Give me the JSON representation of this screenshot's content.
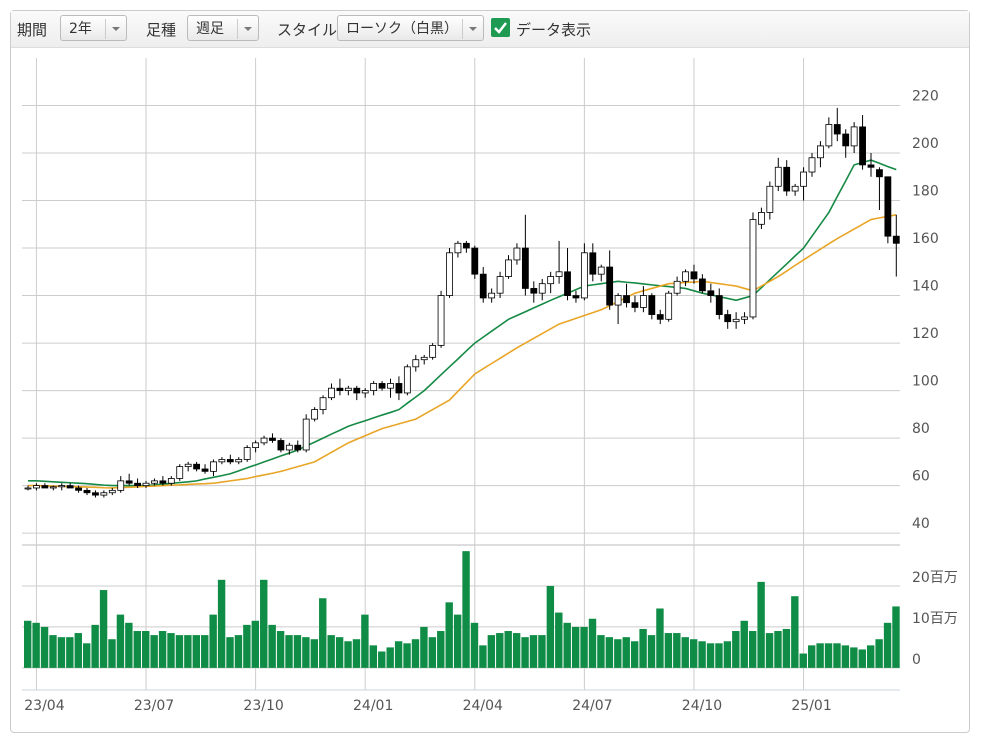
{
  "controls": {
    "period_label": "期間",
    "period_value": "2年",
    "interval_label": "足種",
    "interval_value": "週足",
    "style_label": "スタイル",
    "style_value": "ローソク（白黒）",
    "data_label": "データ表示"
  },
  "chart_data": {
    "type": "candlestick",
    "categories": [
      null,
      "23/04",
      null,
      null,
      null,
      null,
      null,
      null,
      null,
      null,
      null,
      null,
      null,
      null,
      "23/07",
      null,
      null,
      null,
      null,
      null,
      null,
      null,
      null,
      null,
      null,
      null,
      null,
      "23/10",
      null,
      null,
      null,
      null,
      null,
      null,
      null,
      null,
      null,
      null,
      null,
      null,
      "24/01",
      null,
      null,
      null,
      null,
      null,
      null,
      null,
      null,
      null,
      null,
      null,
      null,
      "24/04",
      null,
      null,
      null,
      null,
      null,
      null,
      null,
      null,
      null,
      null,
      null,
      null,
      "24/07",
      null,
      null,
      null,
      null,
      null,
      null,
      null,
      null,
      null,
      null,
      null,
      null,
      "24/10",
      null,
      null,
      null,
      null,
      null,
      null,
      null,
      null,
      null,
      null,
      null,
      null,
      "25/01",
      null,
      null,
      null,
      null,
      null,
      null,
      null,
      null,
      null,
      null,
      null
    ],
    "open": [
      59,
      59,
      60,
      59,
      59.5,
      60,
      59,
      58,
      57,
      56,
      57,
      58,
      62,
      61,
      60,
      61,
      62,
      61,
      63,
      68,
      69,
      67,
      66,
      70,
      71,
      70,
      71,
      76,
      78,
      80,
      79,
      75,
      77,
      75,
      88,
      92,
      97,
      101,
      100,
      101,
      99,
      100,
      103,
      101,
      103,
      99,
      110,
      113,
      114,
      119,
      140,
      158,
      162,
      160,
      149,
      139,
      141,
      148,
      155,
      160,
      143,
      141,
      145,
      148,
      150,
      140,
      139,
      158,
      149,
      152,
      136,
      140,
      137,
      135,
      140,
      132,
      130,
      141,
      146,
      150,
      147,
      142,
      140,
      132,
      129,
      130,
      131,
      170,
      175,
      186,
      194,
      184,
      186,
      192,
      198,
      203,
      212,
      208,
      203,
      211,
      195,
      193,
      190,
      165
    ],
    "high": [
      60,
      61,
      61,
      60,
      61,
      61,
      60,
      59,
      58,
      58,
      59,
      64,
      65,
      63,
      62,
      63,
      64,
      64,
      69,
      70,
      70,
      69,
      71,
      72,
      73,
      72,
      77,
      79,
      81,
      82,
      80,
      78,
      79,
      90,
      93,
      98,
      103,
      105,
      102,
      102,
      101,
      104,
      104,
      105,
      106,
      111,
      115,
      115,
      120,
      142,
      160,
      163,
      163,
      161,
      152,
      143,
      150,
      157,
      162,
      174,
      146,
      147,
      150,
      163,
      160,
      142,
      162,
      162,
      153,
      159,
      141,
      145,
      140,
      144,
      141,
      134,
      142,
      148,
      151,
      153,
      149,
      145,
      143,
      134,
      133,
      133,
      175,
      177,
      188,
      198,
      197,
      187,
      194,
      200,
      205,
      215,
      219,
      210,
      213,
      216,
      200,
      194,
      190,
      174
    ],
    "low": [
      58,
      58,
      59,
      58,
      58,
      59,
      57,
      56,
      55,
      55,
      56,
      57,
      60,
      59,
      59,
      60,
      60,
      60,
      62,
      66,
      66,
      65,
      64,
      69,
      69,
      69,
      70,
      74,
      77,
      78,
      74,
      73,
      74,
      74,
      87,
      90,
      96,
      98,
      98,
      96,
      97,
      98,
      100,
      97,
      96,
      98,
      108,
      111,
      113,
      118,
      139,
      156,
      158,
      147,
      137,
      137,
      139,
      147,
      153,
      140,
      137,
      138,
      141,
      145,
      138,
      137,
      138,
      146,
      146,
      134,
      128,
      135,
      133,
      133,
      130,
      128,
      129,
      140,
      144,
      145,
      141,
      137,
      130,
      126,
      126,
      128,
      130,
      168,
      172,
      184,
      182,
      182,
      180,
      190,
      194,
      202,
      205,
      198,
      200,
      193,
      190,
      176,
      162,
      148
    ],
    "close": [
      59,
      60,
      59,
      59.5,
      60,
      59,
      58,
      57,
      56,
      57,
      58,
      62,
      61,
      60,
      61,
      62,
      61,
      63,
      68,
      69,
      67,
      66,
      70,
      71,
      70,
      71,
      76,
      78,
      80,
      79,
      75,
      77,
      75,
      88,
      92,
      97,
      101,
      100,
      101,
      99,
      100,
      103,
      101,
      103,
      99,
      110,
      113,
      114,
      119,
      140,
      158,
      162,
      160,
      149,
      139,
      141,
      148,
      155,
      160,
      143,
      141,
      145,
      148,
      150,
      140,
      139,
      158,
      149,
      152,
      136,
      140,
      137,
      135,
      140,
      132,
      130,
      141,
      146,
      150,
      147,
      142,
      140,
      132,
      129,
      130,
      131,
      172,
      175,
      186,
      194,
      184,
      186,
      192,
      198,
      203,
      212,
      208,
      203,
      211,
      195,
      194,
      190,
      165,
      162
    ],
    "lines": [
      {
        "color": "#168a45",
        "values": [
          62,
          62,
          61.8,
          61.6,
          61.4,
          61.2,
          61,
          60.8,
          60.5,
          60.2,
          60,
          60,
          60,
          60,
          60,
          60.3,
          60.6,
          61,
          61.3,
          61.6,
          62,
          62.8,
          63.5,
          64.2,
          65,
          66.2,
          67.5,
          68.7,
          70,
          71.2,
          72.5,
          73.7,
          75,
          76.7,
          78.3,
          80,
          81.7,
          83.3,
          85,
          86.2,
          87.3,
          88.5,
          89.7,
          90.8,
          92,
          94.7,
          97.3,
          100,
          103.3,
          106.7,
          110,
          113.3,
          116.7,
          120,
          122.5,
          125,
          127.5,
          130,
          131.6,
          133.2,
          134.8,
          136.4,
          138,
          139.5,
          141,
          142.5,
          144,
          144.5,
          145,
          145.5,
          146,
          145.6,
          145.3,
          144.9,
          144.5,
          144.1,
          143.8,
          143.4,
          143,
          142,
          141,
          140.3,
          139.5,
          138.8,
          138,
          139,
          140,
          143.3,
          146.7,
          150,
          153.3,
          156.7,
          160,
          165,
          170,
          175,
          181.7,
          188.3,
          195,
          196,
          197,
          195.7,
          194.3,
          193
        ]
      },
      {
        "color": "#e8a526",
        "values": [
          60,
          60,
          59.9,
          59.8,
          59.7,
          59.6,
          59.5,
          59.4,
          59.3,
          59.1,
          59,
          59.2,
          59.3,
          59.5,
          59.7,
          59.8,
          60,
          60.2,
          60.3,
          60.5,
          60.7,
          60.8,
          61,
          61.5,
          62,
          62.5,
          63,
          63.8,
          64.5,
          65.2,
          66,
          67,
          68,
          69,
          70,
          72,
          74,
          76,
          78,
          79.5,
          81,
          82.5,
          84,
          85,
          86,
          87,
          88,
          90,
          92,
          94,
          96,
          99.7,
          103.3,
          107,
          109.2,
          111.4,
          113.6,
          115.8,
          118,
          120,
          122,
          124,
          126,
          128,
          129.2,
          130.4,
          131.6,
          132.8,
          134,
          135.7,
          137.5,
          139.2,
          141,
          142,
          143,
          144,
          145,
          145.2,
          145.5,
          145.7,
          146,
          145.5,
          145,
          144.5,
          144,
          143,
          142,
          144,
          146,
          148,
          150.3,
          152.7,
          155,
          157.3,
          159.5,
          161.8,
          164,
          166,
          168,
          170,
          172,
          172.7,
          173.3,
          174
        ]
      }
    ],
    "ylim": [
      35,
      240
    ],
    "yticks": [
      40,
      60,
      80,
      100,
      120,
      140,
      160,
      180,
      200,
      220
    ],
    "grid": true,
    "volume": {
      "color": "#0f8c45",
      "values": [
        11.5,
        11,
        10,
        8,
        7.5,
        7.5,
        8.5,
        6,
        10.5,
        19,
        7,
        13,
        11,
        9,
        9,
        8,
        9,
        8.5,
        8,
        8,
        8,
        8,
        13,
        21.5,
        7.5,
        8,
        10.5,
        11.5,
        21.5,
        10.5,
        9,
        8,
        8,
        7.5,
        7,
        17,
        8,
        7.5,
        6.5,
        7,
        13,
        5.5,
        4,
        5,
        6.5,
        6,
        7,
        10,
        7.5,
        9,
        16,
        13,
        28.5,
        11,
        5.5,
        8,
        8.5,
        9,
        8.5,
        7.5,
        8,
        8,
        20,
        13.5,
        11,
        10,
        10,
        12,
        8,
        7.5,
        7,
        7.5,
        6.5,
        9.5,
        8,
        14.5,
        8.5,
        8.5,
        7.5,
        7,
        6.5,
        6,
        6,
        6.5,
        9,
        11.5,
        9,
        21,
        8.5,
        9,
        9.5,
        17.5,
        3.5,
        5.5,
        6,
        6,
        6,
        5.5,
        5,
        4.5,
        5.5,
        7,
        11,
        15
      ],
      "ylim": [
        -5.4,
        30
      ],
      "yticks": [
        0,
        {
          "value": 10,
          "label": "10百万"
        },
        {
          "value": 20,
          "label": "20百万"
        }
      ]
    }
  }
}
